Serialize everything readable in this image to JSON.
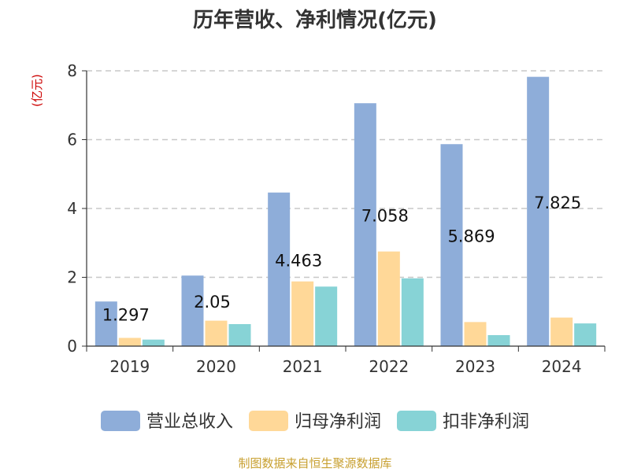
{
  "colors": {
    "series": [
      "#8eadd9",
      "#ffd898",
      "#87d3d6"
    ],
    "title": "#333333",
    "unit": "#cc0000",
    "grid": "#c8c8c8",
    "axis": "#333333",
    "source": "#c8a030"
  },
  "chart_data": {
    "type": "bar",
    "title": "历年营收、净利情况(亿元)",
    "unit_label": "(亿元)",
    "source": "制图数据来自恒生聚源数据库",
    "categories": [
      "2019",
      "2020",
      "2021",
      "2022",
      "2023",
      "2024"
    ],
    "series": [
      {
        "name": "营业总收入",
        "values": [
          1.297,
          2.05,
          4.463,
          7.058,
          5.869,
          7.825
        ]
      },
      {
        "name": "归母净利润",
        "values": [
          0.24,
          0.74,
          1.88,
          2.75,
          0.7,
          0.83
        ]
      },
      {
        "name": "扣非净利润",
        "values": [
          0.19,
          0.64,
          1.73,
          1.97,
          0.32,
          0.66
        ]
      }
    ],
    "data_labels": [
      "1.297",
      "2.05",
      "4.463",
      "7.058",
      "5.869",
      "7.825"
    ],
    "y_ticks": [
      "0",
      "2",
      "4",
      "6",
      "8"
    ],
    "ylim": [
      0,
      8
    ],
    "grid": true,
    "legend_position": "bottom"
  }
}
